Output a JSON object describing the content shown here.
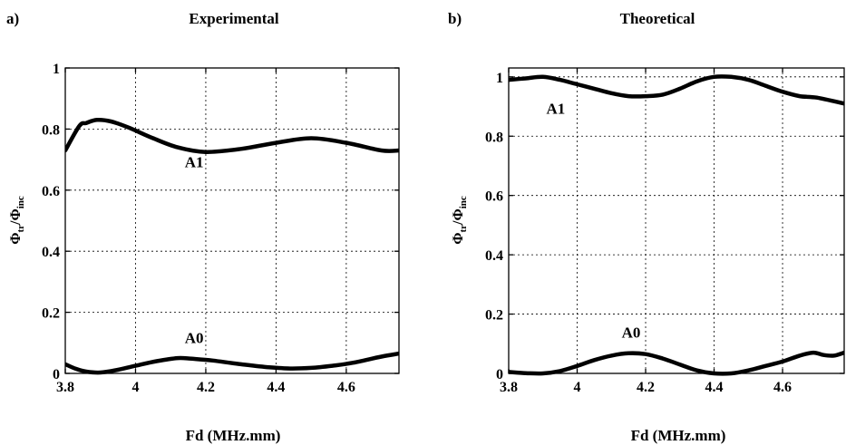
{
  "chart_data": [
    {
      "type": "line",
      "panel_label": "a)",
      "title": "Experimental",
      "xlabel": "Fd (MHz.mm)",
      "ylabel_main": "Φ",
      "ylabel_sub1": "tr",
      "ylabel_mid": "/Φ",
      "ylabel_sub2": "inc",
      "xlim": [
        3.8,
        4.75
      ],
      "ylim": [
        0,
        1
      ],
      "xticks": [
        3.8,
        4.0,
        4.2,
        4.4,
        4.6
      ],
      "xtick_labels": [
        "3.8",
        "4",
        "4.2",
        "4.4",
        "4.6"
      ],
      "yticks": [
        0,
        0.2,
        0.4,
        0.6,
        0.8,
        1.0
      ],
      "ytick_labels": [
        "0",
        "0.2",
        "0.4",
        "0.6",
        "0.8",
        "1"
      ],
      "grid": true,
      "series": [
        {
          "label": "A1",
          "label_at": [
            4.14,
            0.675
          ],
          "x": [
            3.8,
            3.84,
            3.86,
            3.89,
            3.93,
            3.98,
            4.05,
            4.12,
            4.2,
            4.3,
            4.4,
            4.5,
            4.6,
            4.7,
            4.75
          ],
          "y": [
            0.73,
            0.81,
            0.82,
            0.83,
            0.825,
            0.805,
            0.77,
            0.74,
            0.725,
            0.735,
            0.755,
            0.77,
            0.755,
            0.73,
            0.73
          ]
        },
        {
          "label": "A0",
          "label_at": [
            4.14,
            0.1
          ],
          "x": [
            3.8,
            3.83,
            3.86,
            3.9,
            3.95,
            4.0,
            4.06,
            4.12,
            4.16,
            4.22,
            4.3,
            4.38,
            4.44,
            4.5,
            4.56,
            4.62,
            4.7,
            4.75
          ],
          "y": [
            0.03,
            0.015,
            0.006,
            0.003,
            0.012,
            0.025,
            0.04,
            0.05,
            0.048,
            0.042,
            0.03,
            0.02,
            0.016,
            0.018,
            0.025,
            0.035,
            0.055,
            0.065
          ]
        }
      ]
    },
    {
      "type": "line",
      "panel_label": "b)",
      "title": "Theoretical",
      "xlabel": "Fd (MHz.mm)",
      "ylabel_main": "Φ",
      "ylabel_sub1": "tr",
      "ylabel_mid": "/Φ",
      "ylabel_sub2": "inc",
      "xlim": [
        3.8,
        4.78
      ],
      "ylim": [
        0,
        1.03
      ],
      "xticks": [
        3.8,
        4.0,
        4.2,
        4.4,
        4.6
      ],
      "xtick_labels": [
        "3.8",
        "4",
        "4.2",
        "4.4",
        "4.6"
      ],
      "yticks": [
        0,
        0.2,
        0.4,
        0.6,
        0.8,
        1.0
      ],
      "ytick_labels": [
        "0",
        "0.2",
        "0.4",
        "0.6",
        "0.8",
        "1"
      ],
      "grid": true,
      "series": [
        {
          "label": "A1",
          "label_at": [
            3.91,
            0.875
          ],
          "x": [
            3.8,
            3.85,
            3.9,
            3.95,
            4.0,
            4.05,
            4.1,
            4.15,
            4.2,
            4.25,
            4.3,
            4.35,
            4.4,
            4.45,
            4.5,
            4.55,
            4.6,
            4.65,
            4.7,
            4.78
          ],
          "y": [
            0.99,
            0.995,
            1.0,
            0.99,
            0.975,
            0.96,
            0.945,
            0.935,
            0.935,
            0.94,
            0.96,
            0.985,
            1.0,
            1.0,
            0.99,
            0.97,
            0.95,
            0.935,
            0.93,
            0.91
          ]
        },
        {
          "label": "A0",
          "label_at": [
            4.13,
            0.12
          ],
          "x": [
            3.8,
            3.85,
            3.9,
            3.95,
            4.0,
            4.05,
            4.1,
            4.15,
            4.2,
            4.25,
            4.3,
            4.35,
            4.4,
            4.45,
            4.5,
            4.55,
            4.6,
            4.65,
            4.69,
            4.72,
            4.75,
            4.78
          ],
          "y": [
            0.005,
            0.001,
            0.0,
            0.008,
            0.025,
            0.045,
            0.06,
            0.068,
            0.065,
            0.05,
            0.03,
            0.01,
            0.0,
            0.0,
            0.01,
            0.025,
            0.04,
            0.06,
            0.07,
            0.062,
            0.06,
            0.07
          ]
        }
      ]
    }
  ]
}
